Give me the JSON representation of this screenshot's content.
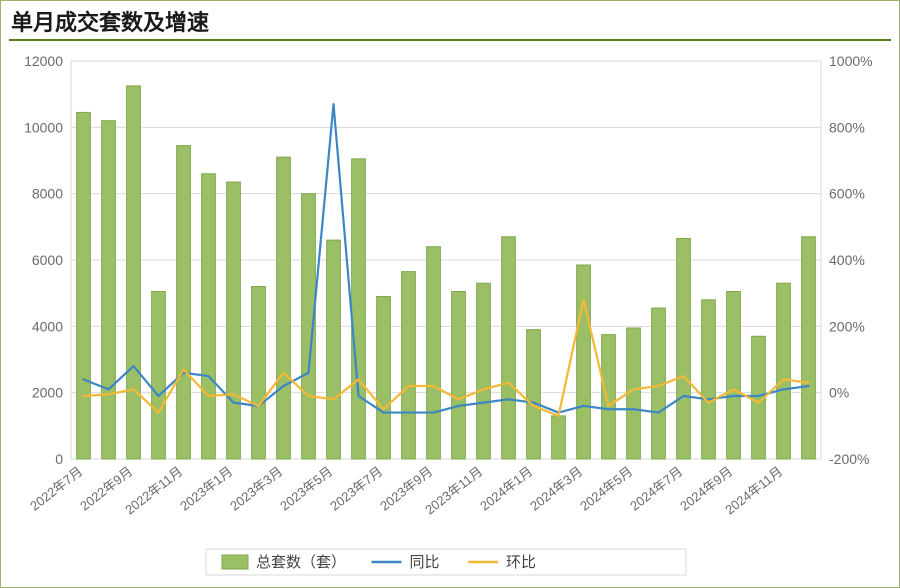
{
  "title": "单月成交套数及增速",
  "title_fontsize": 22,
  "title_weight": 700,
  "chart": {
    "type": "bar+line-dual-axis",
    "background_color": "#ffffff",
    "plot_background": "#ffffff",
    "grid_color": "#d9d9d9",
    "left_axis": {
      "min": 0,
      "max": 12000,
      "tick_step": 2000,
      "labels": [
        "0",
        "2000",
        "4000",
        "6000",
        "8000",
        "10000",
        "12000"
      ],
      "fontsize": 14
    },
    "right_axis": {
      "min": -200,
      "max": 1000,
      "tick_step": 200,
      "labels": [
        "-200%",
        "0%",
        "200%",
        "400%",
        "600%",
        "800%",
        "1000%"
      ],
      "fontsize": 14
    },
    "x_labels": [
      "2022年7月",
      "2022年9月",
      "2022年11月",
      "2023年1月",
      "2023年3月",
      "2023年5月",
      "2023年7月",
      "2023年9月",
      "2023年11月",
      "2024年1月",
      "2024年3月",
      "2024年5月",
      "2024年7月",
      "2024年9月",
      "2024年11月"
    ],
    "x_label_fontsize": 13,
    "x_label_rotation_deg": -38,
    "categories": [
      "2022年7月",
      "2022年8月",
      "2022年9月",
      "2022年10月",
      "2022年11月",
      "2022年12月",
      "2023年1月",
      "2023年2月",
      "2023年3月",
      "2023年4月",
      "2023年5月",
      "2023年6月",
      "2023年7月",
      "2023年8月",
      "2023年9月",
      "2023年10月",
      "2023年11月",
      "2023年12月",
      "2024年1月",
      "2024年2月",
      "2024年3月",
      "2024年4月",
      "2024年5月",
      "2024年6月",
      "2024年7月",
      "2024年8月",
      "2024年9月",
      "2024年10月",
      "2024年11月",
      "2024年12月"
    ],
    "bars": {
      "label": "总套数（套）",
      "color": "#9bbf65",
      "border_color": "#7fa84d",
      "width_ratio": 0.55,
      "values": [
        10450,
        10200,
        11250,
        5050,
        9450,
        8600,
        8350,
        5200,
        9100,
        8000,
        6600,
        9050,
        4900,
        5650,
        6400,
        5050,
        5300,
        6700,
        3900,
        1300,
        5850,
        3750,
        3950,
        4550,
        6650,
        4800,
        5050,
        3700,
        5300,
        6700
      ]
    },
    "line_yoy": {
      "label": "同比",
      "color": "#3d86c6",
      "width": 2.2,
      "values": [
        40,
        10,
        80,
        -10,
        60,
        50,
        -30,
        -40,
        20,
        60,
        870,
        -10,
        -60,
        -60,
        -60,
        -40,
        -30,
        -20,
        -30,
        -60,
        -40,
        -50,
        -50,
        -60,
        -10,
        -20,
        -10,
        -10,
        10,
        20
      ]
    },
    "line_mom": {
      "label": "环比",
      "color": "#f4b836",
      "width": 2.2,
      "values": [
        -10,
        -5,
        10,
        -60,
        70,
        -10,
        -5,
        -40,
        60,
        -10,
        -20,
        40,
        -50,
        20,
        20,
        -20,
        10,
        30,
        -40,
        -70,
        280,
        -40,
        10,
        20,
        50,
        -30,
        10,
        -30,
        40,
        30
      ]
    },
    "legend": {
      "position": "bottom",
      "fontsize": 15,
      "items": [
        {
          "kind": "bar",
          "label": "总套数（套）",
          "color": "#9bbf65",
          "border": "#7fa84d"
        },
        {
          "kind": "line",
          "label": "同比",
          "color": "#3d86c6"
        },
        {
          "kind": "line",
          "label": "环比",
          "color": "#f4b836"
        }
      ]
    }
  }
}
